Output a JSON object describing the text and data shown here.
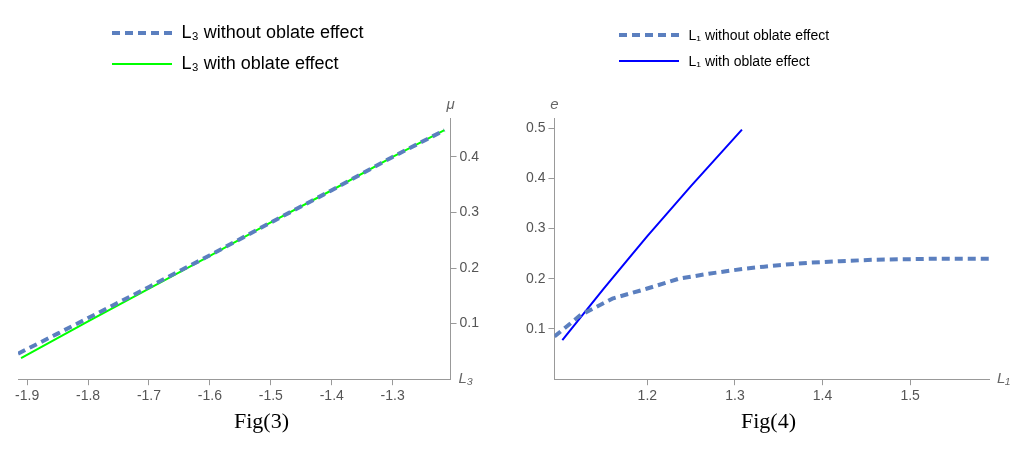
{
  "chart_data": [
    {
      "type": "line",
      "xlabel": "L₃",
      "ylabel": "μ",
      "legend": "top",
      "grid": false,
      "marker": "none",
      "annotations": [
        "Fig(3)"
      ],
      "xlim": [
        -1.915,
        -1.205
      ],
      "xticks": [
        -1.9,
        -1.8,
        -1.7,
        -1.6,
        -1.5,
        -1.4,
        -1.3
      ],
      "ylim": [
        0,
        0.47
      ],
      "yticks": [
        0.1,
        0.2,
        0.3,
        0.4
      ],
      "series": [
        {
          "name": "L₃ without oblate effect",
          "color": "#5b7fbf",
          "line_style": "dashed",
          "x": [
            -1.915,
            -1.85,
            -1.8,
            -1.7,
            -1.6,
            -1.5,
            -1.4,
            -1.3,
            -1.215
          ],
          "values": [
            0.046,
            0.082,
            0.11,
            0.166,
            0.223,
            0.282,
            0.34,
            0.4,
            0.448
          ]
        },
        {
          "name": "L₃ with oblate effect",
          "color": "#00ff00",
          "line_style": "solid",
          "x": [
            -1.91,
            -1.8,
            -1.7,
            -1.6,
            -1.5,
            -1.4,
            -1.3,
            -1.215
          ],
          "values": [
            0.038,
            0.104,
            0.163,
            0.222,
            0.282,
            0.34,
            0.4,
            0.448
          ]
        }
      ]
    },
    {
      "type": "line",
      "xlabel": "L₁",
      "ylabel": "e",
      "legend": "top",
      "grid": false,
      "marker": "none",
      "annotations": [
        "Fig(4)"
      ],
      "xlim": [
        1.094,
        1.59
      ],
      "xticks": [
        1.2,
        1.3,
        1.4,
        1.5
      ],
      "ylim": [
        0,
        0.52
      ],
      "yticks": [
        0.1,
        0.2,
        0.3,
        0.4,
        0.5
      ],
      "series": [
        {
          "name": "L₁ without oblate effect",
          "color": "#5b7fbf",
          "line_style": "dashed",
          "x": [
            1.094,
            1.124,
            1.161,
            1.199,
            1.236,
            1.27,
            1.311,
            1.35,
            1.386,
            1.42,
            1.461,
            1.5,
            1.536,
            1.59
          ],
          "values": [
            0.085,
            0.128,
            0.161,
            0.18,
            0.2,
            0.21,
            0.22,
            0.227,
            0.232,
            0.235,
            0.238,
            0.239,
            0.24,
            0.24
          ]
        },
        {
          "name": "L₁ with oblate effect",
          "color": "#0000ff",
          "line_style": "solid",
          "x": [
            1.103,
            1.15,
            1.2,
            1.25,
            1.308
          ],
          "values": [
            0.078,
            0.18,
            0.285,
            0.385,
            0.497
          ]
        }
      ]
    }
  ]
}
